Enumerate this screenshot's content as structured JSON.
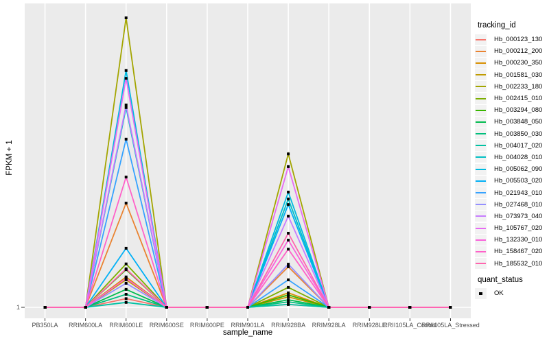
{
  "figure": {
    "background": "#FFFFFF",
    "panel_bg": "#EBEBEB",
    "grid_color": "#FFFFFF",
    "tick_color": "#333333",
    "axis_text_color": "#4D4D4D",
    "point_color": "#000000"
  },
  "axes": {
    "x_title": "sample_name",
    "y_title": "FPKM + 1",
    "y_tick_labels": [
      "1"
    ]
  },
  "legend": {
    "tracking_title": "tracking_id",
    "quant_title": "quant_status",
    "quant_items": [
      {
        "label": "OK",
        "marker": "black-square-point"
      }
    ]
  },
  "chart_data": {
    "type": "line",
    "title": "",
    "xlabel": "sample_name",
    "ylabel": "FPKM + 1",
    "legend_title": "tracking_id",
    "legend_position": "right",
    "grid": "white major gridlines on gray panel",
    "y_tick_labels": [
      "1"
    ],
    "y_scale_note": "Only the value 1 is labeled on the y axis (baseline). Series values below are relative peak heights estimated from pixels: 0 = baseline (FPKM+1 = 1), 1 = tallest peak (Hb_002233_180 at RRIM600LE). All series are flat at baseline except at RRIM600LE and RRIM928BA.",
    "x": [
      "PB350LA",
      "RRIM600LA",
      "RRIM600LE",
      "RRIM600SE",
      "RRIM600PE",
      "RRIM901LA",
      "RRIM928BA",
      "RRIM928LA",
      "RRIM928LE",
      "RRII105LA_Control",
      "RRII105LA_Stressed"
    ],
    "quant_status": {
      "title": "quant_status",
      "levels": [
        "OK"
      ]
    },
    "series": [
      {
        "name": "Hb_000123_130",
        "color": "#F8766D",
        "values": [
          0,
          0,
          0.03,
          0,
          0,
          0,
          0.01,
          0,
          0,
          0,
          0
        ]
      },
      {
        "name": "Hb_000212_200",
        "color": "#EA8331",
        "values": [
          0,
          0,
          0.36,
          0,
          0,
          0,
          0.14,
          0,
          0,
          0,
          0
        ]
      },
      {
        "name": "Hb_000230_350",
        "color": "#D89000",
        "values": [
          0,
          0,
          0.105,
          0,
          0,
          0,
          0.05,
          0,
          0,
          0,
          0
        ]
      },
      {
        "name": "Hb_001581_030",
        "color": "#C09B00",
        "values": [
          0,
          0,
          0.095,
          0,
          0,
          0,
          0.036,
          0,
          0,
          0,
          0
        ]
      },
      {
        "name": "Hb_002233_180",
        "color": "#A3A500",
        "values": [
          0,
          0,
          1.0,
          0,
          0,
          0,
          0.53,
          0,
          0,
          0,
          0
        ]
      },
      {
        "name": "Hb_002415_010",
        "color": "#7CAE00",
        "values": [
          0,
          0,
          0.15,
          0,
          0,
          0,
          0.069,
          0,
          0,
          0,
          0
        ]
      },
      {
        "name": "Hb_003294_080",
        "color": "#39B600",
        "values": [
          0,
          0,
          0.13,
          0,
          0,
          0,
          0.043,
          0,
          0,
          0,
          0
        ]
      },
      {
        "name": "Hb_003848_050",
        "color": "#00BB4E",
        "values": [
          0,
          0,
          0.062,
          0,
          0,
          0,
          0.026,
          0,
          0,
          0,
          0
        ]
      },
      {
        "name": "Hb_003850_030",
        "color": "#00BF7D",
        "values": [
          0,
          0,
          0.045,
          0,
          0,
          0,
          0.019,
          0,
          0,
          0,
          0
        ]
      },
      {
        "name": "Hb_004017_020",
        "color": "#00C1A3",
        "values": [
          0,
          0,
          0.017,
          0,
          0,
          0,
          0.01,
          0,
          0,
          0,
          0
        ]
      },
      {
        "name": "Hb_004028_010",
        "color": "#00BFC4",
        "values": [
          0,
          0,
          0.69,
          0,
          0,
          0,
          0.374,
          0,
          0,
          0,
          0
        ]
      },
      {
        "name": "Hb_005062_090",
        "color": "#00BAE0",
        "values": [
          0,
          0,
          0.818,
          0,
          0,
          0,
          0.398,
          0,
          0,
          0,
          0
        ]
      },
      {
        "name": "Hb_005503_020",
        "color": "#00B0F6",
        "values": [
          0,
          0,
          0.204,
          0,
          0,
          0,
          0.355,
          0,
          0,
          0,
          0
        ]
      },
      {
        "name": "Hb_021943_010",
        "color": "#35A2FF",
        "values": [
          0,
          0,
          0.581,
          0,
          0,
          0,
          0.095,
          0,
          0,
          0,
          0
        ]
      },
      {
        "name": "Hb_027468_010",
        "color": "#9590FF",
        "values": [
          0,
          0,
          0.083,
          0,
          0,
          0,
          0.149,
          0,
          0,
          0,
          0
        ]
      },
      {
        "name": "Hb_073973_040",
        "color": "#C77CFF",
        "values": [
          0,
          0,
          0.699,
          0,
          0,
          0,
          0.315,
          0,
          0,
          0,
          0
        ]
      },
      {
        "name": "Hb_105767_020",
        "color": "#E76BF3",
        "values": [
          0,
          0,
          0.791,
          0,
          0,
          0,
          0.486,
          0,
          0,
          0,
          0
        ]
      },
      {
        "name": "Hb_132330_010",
        "color": "#FA62DB",
        "values": [
          0,
          0,
          0.1,
          0,
          0,
          0,
          0.232,
          0,
          0,
          0,
          0
        ]
      },
      {
        "name": "Hb_158467_020",
        "color": "#FF61C9",
        "values": [
          0,
          0,
          0.45,
          0,
          0,
          0,
          0.201,
          0,
          0,
          0,
          0
        ]
      },
      {
        "name": "Hb_185532_010",
        "color": "#FF65AE",
        "values": [
          0,
          0,
          0.133,
          0,
          0,
          0,
          0.256,
          0,
          0,
          0,
          0
        ]
      }
    ]
  }
}
